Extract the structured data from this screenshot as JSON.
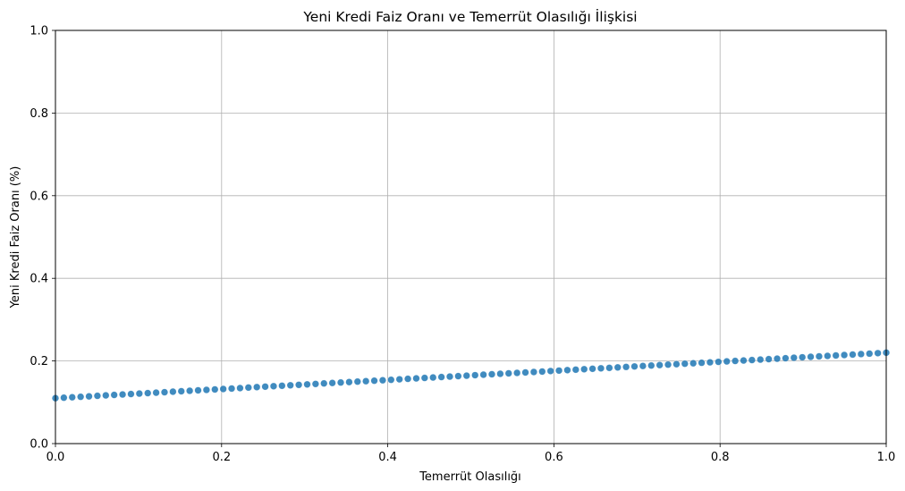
{
  "chart_data": {
    "type": "scatter",
    "title": "Yeni Kredi Faiz Oranı ve Temerrüt Olasılığı İlişkisi",
    "xlabel": "Temerrüt Olasılığı",
    "ylabel": "Yeni Kredi Faiz Oranı (%)",
    "xlim": [
      0,
      1
    ],
    "ylim": [
      0,
      1
    ],
    "xticks": [
      "0.0",
      "0.2",
      "0.4",
      "0.6",
      "0.8",
      "1.0"
    ],
    "yticks": [
      "0.0",
      "0.2",
      "0.4",
      "0.6",
      "0.8",
      "1.0"
    ],
    "grid": true,
    "marker_color": "#1f77b4",
    "series": [
      {
        "x": [
          0.0,
          0.0101,
          0.0202,
          0.0303,
          0.0404,
          0.0505,
          0.0606,
          0.0707,
          0.0808,
          0.0909,
          0.101,
          0.1111,
          0.1212,
          0.1313,
          0.1414,
          0.1515,
          0.1616,
          0.1717,
          0.1818,
          0.1919,
          0.202,
          0.2121,
          0.2222,
          0.2323,
          0.2424,
          0.2525,
          0.2626,
          0.2727,
          0.2828,
          0.2929,
          0.303,
          0.3131,
          0.3232,
          0.3333,
          0.3434,
          0.3535,
          0.3636,
          0.3737,
          0.3838,
          0.3939,
          0.404,
          0.4141,
          0.4242,
          0.4343,
          0.4444,
          0.4545,
          0.4646,
          0.4747,
          0.4848,
          0.4949,
          0.5051,
          0.5152,
          0.5253,
          0.5354,
          0.5455,
          0.5556,
          0.5657,
          0.5758,
          0.5859,
          0.596,
          0.6061,
          0.6162,
          0.6263,
          0.6364,
          0.6465,
          0.6566,
          0.6667,
          0.6768,
          0.6869,
          0.697,
          0.7071,
          0.7172,
          0.7273,
          0.7374,
          0.7475,
          0.7576,
          0.7677,
          0.7778,
          0.7879,
          0.798,
          0.8081,
          0.8182,
          0.8283,
          0.8384,
          0.8485,
          0.8586,
          0.8687,
          0.8788,
          0.8889,
          0.899,
          0.9091,
          0.9192,
          0.9293,
          0.9394,
          0.9495,
          0.9596,
          0.9697,
          0.9798,
          0.9899,
          1.0
        ],
        "y": [
          0.11,
          0.1111,
          0.1122,
          0.1133,
          0.1144,
          0.1156,
          0.1167,
          0.1178,
          0.1189,
          0.12,
          0.1211,
          0.1222,
          0.1233,
          0.1244,
          0.1256,
          0.1267,
          0.1278,
          0.1289,
          0.13,
          0.1311,
          0.1322,
          0.1333,
          0.1344,
          0.1356,
          0.1367,
          0.1378,
          0.1389,
          0.14,
          0.1411,
          0.1422,
          0.1433,
          0.1444,
          0.1456,
          0.1467,
          0.1478,
          0.1489,
          0.15,
          0.1511,
          0.1522,
          0.1533,
          0.1544,
          0.1556,
          0.1567,
          0.1578,
          0.1589,
          0.16,
          0.1611,
          0.1622,
          0.1633,
          0.1644,
          0.1656,
          0.1667,
          0.1678,
          0.1689,
          0.17,
          0.1711,
          0.1722,
          0.1733,
          0.1744,
          0.1756,
          0.1767,
          0.1778,
          0.1789,
          0.18,
          0.1811,
          0.1822,
          0.1833,
          0.1844,
          0.1856,
          0.1867,
          0.1878,
          0.1889,
          0.19,
          0.1911,
          0.1922,
          0.1933,
          0.1944,
          0.1956,
          0.1967,
          0.1978,
          0.1989,
          0.2,
          0.2011,
          0.2022,
          0.2033,
          0.2044,
          0.2056,
          0.2067,
          0.2078,
          0.2089,
          0.21,
          0.2111,
          0.2122,
          0.2133,
          0.2144,
          0.2156,
          0.2167,
          0.2178,
          0.2189,
          0.22
        ]
      }
    ]
  }
}
